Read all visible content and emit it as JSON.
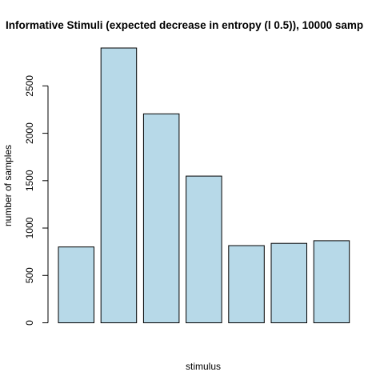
{
  "chart_data": {
    "type": "bar",
    "title": "Informative Stimuli (expected decrease in entropy (l 0.5)), 10000 samp",
    "xlabel": "stimulus",
    "ylabel": "number of samples",
    "ylim": [
      0,
      2900
    ],
    "yticks": [
      0,
      500,
      1000,
      1500,
      2000,
      2500
    ],
    "ytick_labels": [
      "0",
      "500",
      "1000",
      "1500",
      "2000",
      "2500"
    ],
    "values": [
      800,
      2900,
      2205,
      1548,
      815,
      838,
      866
    ],
    "bar_color": "#B7D9E8",
    "bar_stroke": "#000000",
    "grid": false,
    "legend": "none"
  }
}
